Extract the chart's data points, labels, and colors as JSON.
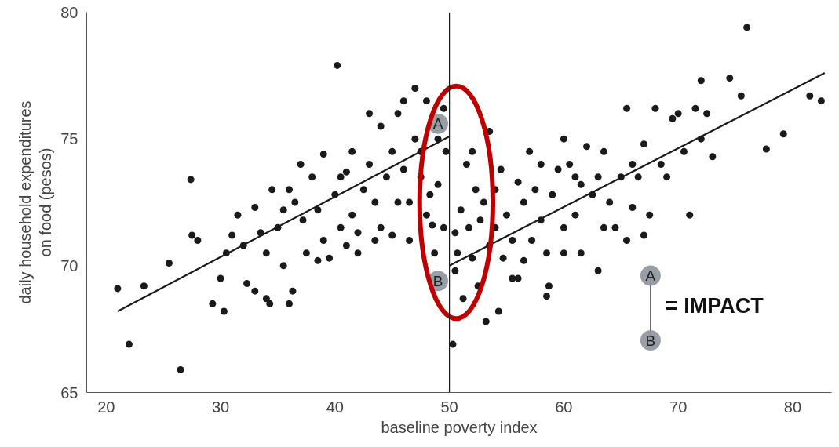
{
  "chart_data": {
    "type": "scatter",
    "xlabel": "baseline poverty index",
    "ylabel": "daily household expenditures\non food (pesos)",
    "xlim": [
      18.3,
      83.4
    ],
    "ylim": [
      65,
      80
    ],
    "xticks": [
      20,
      30,
      40,
      50,
      60,
      70,
      80
    ],
    "yticks": [
      65,
      70,
      75,
      80
    ],
    "grid": false,
    "series": [
      {
        "marker": "circle",
        "color": "#1a1a1a",
        "x": [
          21,
          22,
          23.3,
          25.5,
          26.5,
          27.4,
          27.5,
          28,
          29.3,
          30.3,
          30.5,
          31,
          31.5,
          32,
          32.3,
          33,
          33.5,
          34,
          34.3,
          34.5,
          35,
          35.5,
          36,
          36.3,
          36.5,
          37,
          37.2,
          37.5,
          38,
          38.5,
          39,
          39,
          39.5,
          40,
          40.2,
          40.5,
          41,
          41.5,
          41.5,
          42,
          42.5,
          43,
          43.5,
          43.5,
          44,
          44.5,
          45,
          45,
          45.5,
          46,
          46,
          46.5,
          47,
          47,
          47.5,
          48,
          48,
          48.3,
          48.5,
          48.7,
          49,
          49,
          49.5,
          49.7,
          49.5,
          38.5,
          42,
          44,
          30,
          33,
          36,
          34,
          35.5,
          40.5,
          43,
          45.5,
          47.5,
          41,
          46.5,
          50.3,
          50.5,
          50.5,
          50.7,
          51,
          51.2,
          51.5,
          51.7,
          52,
          52.3,
          52.5,
          52.7,
          53,
          53.2,
          53.5,
          53.5,
          54,
          54.3,
          54.5,
          54.7,
          55,
          55.5,
          55.5,
          56,
          56.5,
          56.5,
          57,
          57.2,
          57.5,
          58,
          58,
          58.5,
          58.7,
          59,
          59.5,
          60,
          60,
          60.5,
          61,
          61.5,
          61.5,
          62,
          62.5,
          63,
          63.5,
          64,
          64.5,
          65,
          65.5,
          65.5,
          66,
          66.5,
          67,
          67.5,
          68,
          68.5,
          69,
          69.5,
          70,
          70.5,
          71,
          71.5,
          72,
          72,
          72.5,
          73,
          74.5,
          75.5,
          76,
          77.7,
          79.2,
          81.5,
          82.5,
          63,
          60,
          56,
          54,
          52,
          58.5,
          61,
          63.5,
          66,
          67
        ],
        "values": [
          69.1,
          66.9,
          69.2,
          70.1,
          65.9,
          73.4,
          71.2,
          71,
          68.5,
          68.2,
          70.5,
          71.2,
          72,
          70.8,
          69.3,
          72.3,
          71.3,
          68.7,
          68.5,
          73,
          71.5,
          70,
          68.5,
          69,
          72.5,
          74,
          71.8,
          70.5,
          73.5,
          72.2,
          71,
          74.4,
          70.3,
          72.8,
          77.9,
          71.5,
          73.7,
          74.5,
          72,
          71.3,
          73,
          74,
          72.5,
          71,
          75.5,
          73.5,
          74.5,
          71.2,
          72.5,
          76.5,
          73.8,
          71,
          77,
          75,
          73.5,
          76.5,
          72,
          72.8,
          71.6,
          70.5,
          75,
          73.2,
          76.2,
          74.5,
          71.5,
          70.2,
          70.5,
          71.5,
          69.5,
          69,
          73,
          70.5,
          72.2,
          73.5,
          76,
          76,
          74.5,
          70.8,
          72.5,
          66.9,
          69.8,
          71.3,
          70.5,
          72.2,
          68.7,
          74,
          71.5,
          70.3,
          73,
          69.2,
          71.8,
          72.5,
          67.8,
          70.8,
          75.3,
          71.5,
          68.2,
          73.8,
          70.3,
          72,
          69.5,
          71,
          73.3,
          72.5,
          70.2,
          74.5,
          71,
          73,
          71.8,
          74,
          68.8,
          69.2,
          72.8,
          73.8,
          75,
          71.5,
          74,
          72,
          73.2,
          70.5,
          74.7,
          72.8,
          73.5,
          74.5,
          72.5,
          71.5,
          73.5,
          76.2,
          71,
          72.3,
          73.5,
          74.8,
          72,
          76.2,
          74,
          73.5,
          75.8,
          76,
          74.5,
          72,
          76.2,
          77.3,
          75,
          76,
          74.3,
          77.4,
          76.7,
          79.4,
          74.6,
          75.2,
          76.7,
          76.5,
          69.8,
          70.5,
          69.5,
          73,
          74.5,
          70.5,
          73.5,
          71.5,
          74,
          71.2
        ]
      },
      {
        "type": "line",
        "color": "#1a1a1a",
        "x": [
          21,
          50
        ],
        "values": [
          68.2,
          75.1
        ],
        "line_style": "solid",
        "marker": "none"
      },
      {
        "type": "line",
        "color": "#1a1a1a",
        "x": [
          50,
          82.8
        ],
        "values": [
          70.0,
          77.6
        ],
        "line_style": "solid",
        "marker": "none"
      }
    ],
    "ref_lines": [
      {
        "axis": "x",
        "value": 50,
        "color": "#1a1a1a"
      }
    ],
    "annotations": [
      {
        "text": "A",
        "x": 49,
        "y": 75.6
      },
      {
        "text": "B",
        "x": 49,
        "y": 69.4
      },
      "A",
      "B",
      "= IMPACT"
    ]
  }
}
